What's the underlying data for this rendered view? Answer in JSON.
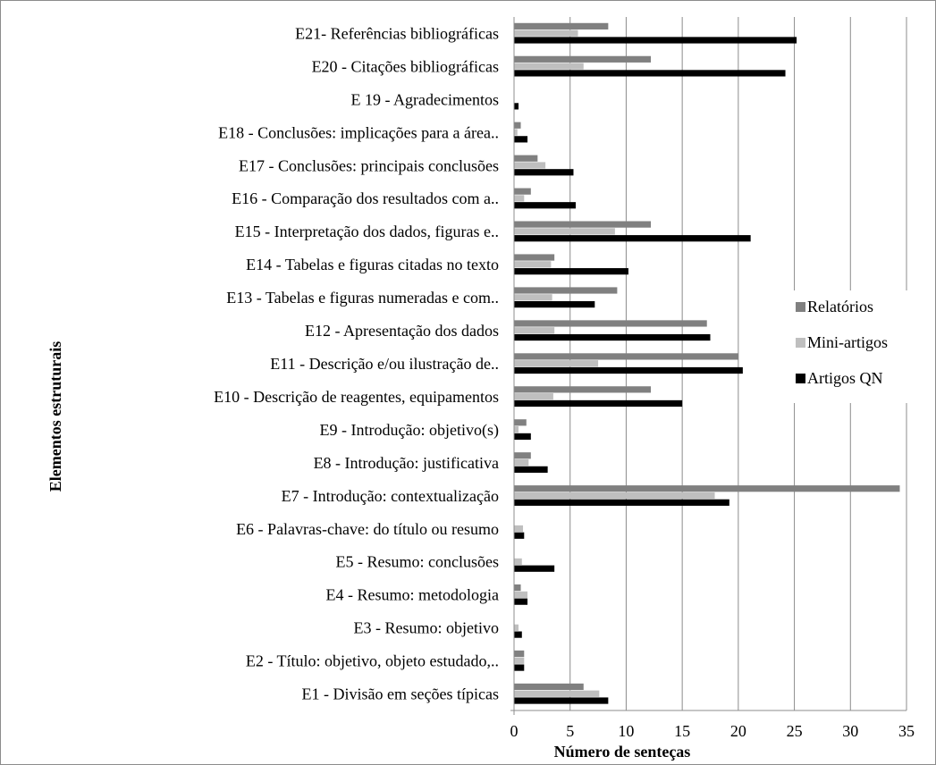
{
  "chart_data": {
    "type": "bar",
    "orientation": "horizontal",
    "title": "",
    "xlabel": "Número de senteças",
    "ylabel": "Elementos estruturais",
    "xlim": [
      0,
      35
    ],
    "xticks": [
      0,
      5,
      10,
      15,
      20,
      25,
      30,
      35
    ],
    "grid": "vertical",
    "legend_position": "right",
    "categories": [
      "E21- Referências bibliográficas",
      "E20 - Citações bibliográficas",
      "E 19 - Agradecimentos",
      "E18 - Conclusões: implicações para a área..",
      "E17 - Conclusões: principais conclusões",
      "E16 - Comparação dos resultados com a..",
      "E15 - Interpretação dos dados, figuras e..",
      "E14 - Tabelas e figuras citadas no texto",
      "E13 - Tabelas e figuras numeradas e com..",
      "E12 - Apresentação dos dados",
      "E11 - Descrição e/ou ilustração de..",
      "E10 - Descrição de reagentes, equipamentos",
      "E9 - Introdução: objetivo(s)",
      "E8 - Introdução: justificativa",
      "E7 - Introdução: contextualização",
      "E6 - Palavras-chave: do título ou resumo",
      "E5 - Resumo: conclusões",
      "E4 - Resumo: metodologia",
      "E3 - Resumo: objetivo",
      "E2 - Título: objetivo, objeto estudado,..",
      "E1 - Divisão em seções típicas"
    ],
    "series": [
      {
        "name": "Relatórios",
        "color": "#808080",
        "values": [
          8.4,
          12.2,
          0,
          0.6,
          2.1,
          1.5,
          12.2,
          3.6,
          9.2,
          17.2,
          20.0,
          12.2,
          1.1,
          1.5,
          34.4,
          0,
          0,
          0.6,
          0,
          0.9,
          6.2
        ]
      },
      {
        "name": "Mini-artigos",
        "color": "#bfbfbf",
        "values": [
          5.7,
          6.2,
          0,
          0.3,
          2.8,
          0.9,
          9.0,
          3.3,
          3.4,
          3.6,
          7.5,
          3.5,
          0.4,
          1.3,
          17.9,
          0.8,
          0.7,
          1.2,
          0.4,
          0.9,
          7.6
        ]
      },
      {
        "name": "Artigos QN",
        "color": "#000000",
        "values": [
          25.2,
          24.2,
          0.4,
          1.2,
          5.3,
          5.5,
          21.1,
          10.2,
          7.2,
          17.5,
          20.4,
          15.0,
          1.5,
          3.0,
          19.2,
          0.9,
          3.6,
          1.2,
          0.7,
          0.9,
          8.4
        ]
      }
    ]
  }
}
